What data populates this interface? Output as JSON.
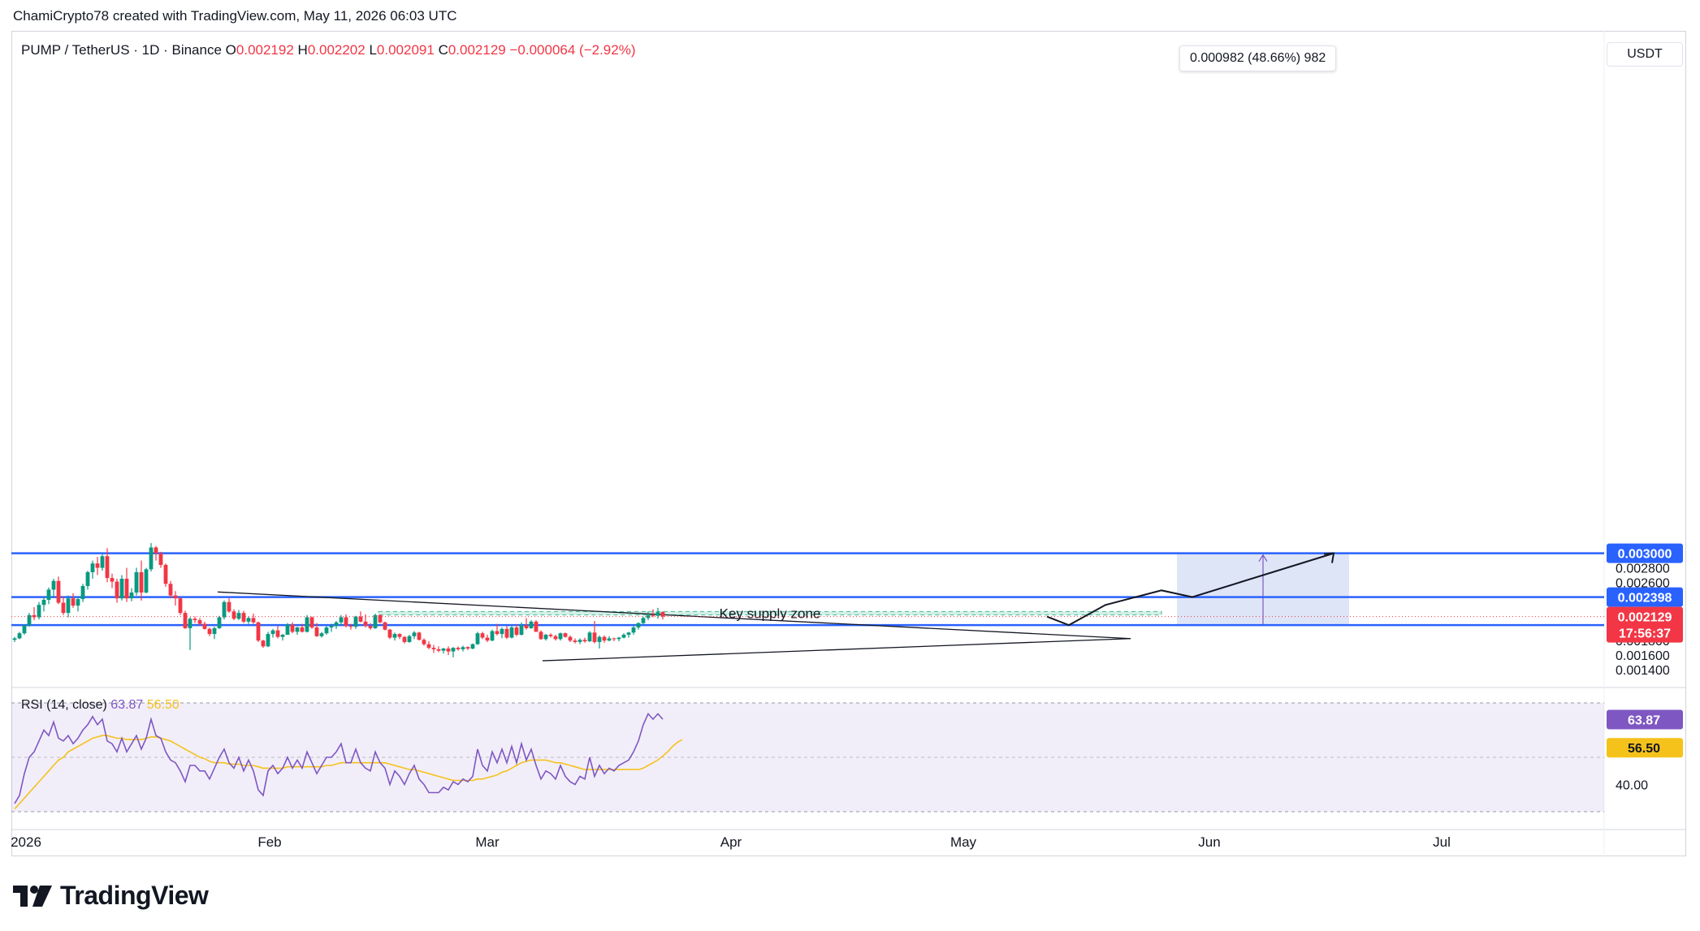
{
  "header": {
    "credit": "ChamiCrypto78 created with TradingView.com, May 11, 2026 06:03 UTC"
  },
  "symbol": {
    "pair": "PUMP / TetherUS · 1D · Binance",
    "open_label": "O",
    "open": "0.002192",
    "high_label": "H",
    "high": "0.002202",
    "low_label": "L",
    "low": "0.002091",
    "close_label": "C",
    "close": "0.002129",
    "change": "−0.000064 (−2.92%)"
  },
  "currency_button": "USDT",
  "measure_label": "0.000982 (48.66%) 982",
  "zone_label": "Key supply zone",
  "last_price": {
    "price": "0.002129",
    "countdown": "17:56:37"
  },
  "rsi": {
    "title": "RSI (14, close)",
    "value": "63.87",
    "ma": "56.50",
    "axis_label": "40.00"
  },
  "brand": {
    "name": "TradingView"
  },
  "colors": {
    "up": "#089981",
    "down": "#f23645",
    "level": "#2962ff",
    "rsi": "#7e57c2",
    "rsi_ma": "#f5c21b",
    "zone": "#d1f0e6",
    "target_box": "#dce4f7"
  },
  "chart_data": {
    "type": "candlestick",
    "x_axis": {
      "labels": [
        "2026",
        "Feb",
        "Mar",
        "Apr",
        "May",
        "Jun",
        "Jul"
      ]
    },
    "y_axis": {
      "labels": [
        "0.002800",
        "0.002600",
        "0.002200",
        "0.001800",
        "0.001600",
        "0.001400"
      ],
      "range": [
        0.00133,
        0.00314
      ]
    },
    "levels": [
      0.003,
      0.002398,
      0.002012
    ],
    "level_labels": [
      "0.003000",
      "0.002398",
      "0.002012"
    ],
    "supply_zone": [
      0.002152,
      0.0022
    ],
    "target_range": [
      0.002018,
      0.003
    ],
    "candles": [
      [
        0.00181,
        0.00185,
        0.00178,
        0.00183
      ],
      [
        0.00183,
        0.00192,
        0.00182,
        0.0019
      ],
      [
        0.0019,
        0.00202,
        0.00188,
        0.00201
      ],
      [
        0.00201,
        0.00218,
        0.00199,
        0.00215
      ],
      [
        0.00215,
        0.00226,
        0.00208,
        0.00212
      ],
      [
        0.00212,
        0.00233,
        0.00209,
        0.00229
      ],
      [
        0.00229,
        0.0024,
        0.0022,
        0.00236
      ],
      [
        0.00236,
        0.00253,
        0.0023,
        0.0025
      ],
      [
        0.0025,
        0.00265,
        0.0024,
        0.00262
      ],
      [
        0.00262,
        0.00268,
        0.0023,
        0.00232
      ],
      [
        0.00232,
        0.00241,
        0.00215,
        0.00218
      ],
      [
        0.00218,
        0.00242,
        0.00212,
        0.00238
      ],
      [
        0.00238,
        0.00245,
        0.00225,
        0.00228
      ],
      [
        0.00228,
        0.0024,
        0.0022,
        0.00237
      ],
      [
        0.00237,
        0.00258,
        0.00233,
        0.00255
      ],
      [
        0.00255,
        0.00276,
        0.0025,
        0.00274
      ],
      [
        0.00274,
        0.0029,
        0.00265,
        0.00286
      ],
      [
        0.00286,
        0.00295,
        0.0027,
        0.0028
      ],
      [
        0.0028,
        0.00299,
        0.00276,
        0.00296
      ],
      [
        0.00296,
        0.00307,
        0.0026,
        0.00266
      ],
      [
        0.00266,
        0.00272,
        0.00252,
        0.00261
      ],
      [
        0.00261,
        0.00265,
        0.00232,
        0.00238
      ],
      [
        0.00238,
        0.0027,
        0.00235,
        0.00265
      ],
      [
        0.00265,
        0.0028,
        0.00233,
        0.00238
      ],
      [
        0.00238,
        0.00252,
        0.00234,
        0.00246
      ],
      [
        0.00246,
        0.0028,
        0.00242,
        0.00274
      ],
      [
        0.00274,
        0.0029,
        0.00235,
        0.00246
      ],
      [
        0.00246,
        0.0028,
        0.00245,
        0.00278
      ],
      [
        0.00278,
        0.00314,
        0.00275,
        0.00308
      ],
      [
        0.00308,
        0.0031,
        0.0029,
        0.003
      ],
      [
        0.003,
        0.00302,
        0.0028,
        0.00284
      ],
      [
        0.00284,
        0.00286,
        0.00254,
        0.00258
      ],
      [
        0.00258,
        0.00262,
        0.00238,
        0.00242
      ],
      [
        0.00242,
        0.00248,
        0.00228,
        0.00238
      ],
      [
        0.00238,
        0.0024,
        0.00215,
        0.00218
      ],
      [
        0.00218,
        0.00221,
        0.00196,
        0.00197
      ],
      [
        0.00197,
        0.00212,
        0.00167,
        0.0021
      ],
      [
        0.0021,
        0.00213,
        0.00204,
        0.00208
      ],
      [
        0.00208,
        0.00211,
        0.002,
        0.00203
      ],
      [
        0.00203,
        0.00206,
        0.00195,
        0.00196
      ],
      [
        0.00196,
        0.00198,
        0.00186,
        0.00189
      ],
      [
        0.00189,
        0.00199,
        0.00182,
        0.00197
      ],
      [
        0.00197,
        0.00214,
        0.00196,
        0.00212
      ],
      [
        0.00212,
        0.00235,
        0.00209,
        0.00233
      ],
      [
        0.00233,
        0.00238,
        0.00218,
        0.0022
      ],
      [
        0.0022,
        0.00223,
        0.00208,
        0.0021
      ],
      [
        0.0021,
        0.00222,
        0.00208,
        0.00218
      ],
      [
        0.00218,
        0.00221,
        0.00204,
        0.00206
      ],
      [
        0.00206,
        0.00213,
        0.00203,
        0.00211
      ],
      [
        0.00211,
        0.00217,
        0.00203,
        0.00205
      ],
      [
        0.00205,
        0.00206,
        0.00178,
        0.0018
      ],
      [
        0.0018,
        0.00181,
        0.0017,
        0.00172
      ],
      [
        0.00172,
        0.00192,
        0.00171,
        0.00189
      ],
      [
        0.00189,
        0.00196,
        0.00184,
        0.00194
      ],
      [
        0.00194,
        0.002,
        0.00183,
        0.00185
      ],
      [
        0.00185,
        0.00189,
        0.0018,
        0.00188
      ],
      [
        0.00188,
        0.00204,
        0.00188,
        0.00202
      ],
      [
        0.00202,
        0.00205,
        0.0019,
        0.00192
      ],
      [
        0.00192,
        0.00199,
        0.00188,
        0.00198
      ],
      [
        0.00198,
        0.00203,
        0.00191,
        0.00192
      ],
      [
        0.00192,
        0.00215,
        0.00191,
        0.00212
      ],
      [
        0.00212,
        0.00213,
        0.00196,
        0.00198
      ],
      [
        0.00198,
        0.00204,
        0.00185,
        0.00186
      ],
      [
        0.00186,
        0.00192,
        0.00184,
        0.0019
      ],
      [
        0.0019,
        0.002,
        0.00188,
        0.00198
      ],
      [
        0.00198,
        0.00203,
        0.00192,
        0.002
      ],
      [
        0.002,
        0.00207,
        0.00196,
        0.00205
      ],
      [
        0.00205,
        0.00215,
        0.00201,
        0.00212
      ],
      [
        0.00212,
        0.00216,
        0.00198,
        0.002
      ],
      [
        0.002,
        0.00203,
        0.00195,
        0.00199
      ],
      [
        0.00199,
        0.00214,
        0.00196,
        0.00213
      ],
      [
        0.00213,
        0.0022,
        0.00205,
        0.00206
      ],
      [
        0.00206,
        0.00216,
        0.00198,
        0.002
      ],
      [
        0.002,
        0.00204,
        0.00195,
        0.00197
      ],
      [
        0.00197,
        0.00217,
        0.00196,
        0.00215
      ],
      [
        0.00215,
        0.00216,
        0.00204,
        0.00205
      ],
      [
        0.00205,
        0.00206,
        0.00194,
        0.00195
      ],
      [
        0.00195,
        0.00196,
        0.00182,
        0.00184
      ],
      [
        0.00184,
        0.00191,
        0.0018,
        0.00189
      ],
      [
        0.00189,
        0.0019,
        0.00182,
        0.00185
      ],
      [
        0.00185,
        0.00186,
        0.00176,
        0.00178
      ],
      [
        0.00178,
        0.00188,
        0.00177,
        0.00186
      ],
      [
        0.00186,
        0.00193,
        0.00182,
        0.00191
      ],
      [
        0.00191,
        0.00192,
        0.0018,
        0.00181
      ],
      [
        0.00181,
        0.00183,
        0.00173,
        0.00175
      ],
      [
        0.00175,
        0.00179,
        0.00168,
        0.0017
      ],
      [
        0.0017,
        0.00174,
        0.00163,
        0.00168
      ],
      [
        0.00168,
        0.00172,
        0.00164,
        0.00166
      ],
      [
        0.00166,
        0.0017,
        0.00162,
        0.00169
      ],
      [
        0.00169,
        0.00172,
        0.0016,
        0.00165
      ],
      [
        0.00165,
        0.00171,
        0.00157,
        0.0017
      ],
      [
        0.0017,
        0.00172,
        0.00166,
        0.00168
      ],
      [
        0.00168,
        0.00173,
        0.00165,
        0.00171
      ],
      [
        0.00171,
        0.00172,
        0.00167,
        0.00169
      ],
      [
        0.00169,
        0.00176,
        0.00168,
        0.00175
      ],
      [
        0.00175,
        0.00192,
        0.00174,
        0.0019
      ],
      [
        0.0019,
        0.00192,
        0.00182,
        0.00184
      ],
      [
        0.00184,
        0.00188,
        0.00178,
        0.0018
      ],
      [
        0.0018,
        0.00195,
        0.00179,
        0.00193
      ],
      [
        0.00193,
        0.00203,
        0.00187,
        0.00189
      ],
      [
        0.00189,
        0.00198,
        0.00183,
        0.00196
      ],
      [
        0.00196,
        0.002,
        0.00182,
        0.00184
      ],
      [
        0.00184,
        0.002,
        0.00183,
        0.00198
      ],
      [
        0.00198,
        0.00202,
        0.00186,
        0.00188
      ],
      [
        0.00188,
        0.00205,
        0.00187,
        0.00201
      ],
      [
        0.00201,
        0.00211,
        0.00195,
        0.00197
      ],
      [
        0.00197,
        0.00208,
        0.00196,
        0.00206
      ],
      [
        0.00206,
        0.00208,
        0.00192,
        0.00192
      ],
      [
        0.00192,
        0.00194,
        0.00181,
        0.00182
      ],
      [
        0.00182,
        0.00189,
        0.0018,
        0.00188
      ],
      [
        0.00188,
        0.0019,
        0.00184,
        0.00186
      ],
      [
        0.00186,
        0.00188,
        0.0018,
        0.00182
      ],
      [
        0.00182,
        0.00191,
        0.0018,
        0.0019
      ],
      [
        0.0019,
        0.00191,
        0.00184,
        0.00185
      ],
      [
        0.00185,
        0.00187,
        0.00178,
        0.0018
      ],
      [
        0.0018,
        0.00183,
        0.00176,
        0.00178
      ],
      [
        0.00178,
        0.00183,
        0.00175,
        0.00181
      ],
      [
        0.00181,
        0.00184,
        0.00177,
        0.00179
      ],
      [
        0.00179,
        0.00193,
        0.00178,
        0.00191
      ],
      [
        0.00191,
        0.00207,
        0.00176,
        0.00178
      ],
      [
        0.00178,
        0.00187,
        0.00169,
        0.00185
      ],
      [
        0.00185,
        0.00187,
        0.00177,
        0.0018
      ],
      [
        0.0018,
        0.00186,
        0.00179,
        0.00183
      ],
      [
        0.00183,
        0.00184,
        0.00179,
        0.00182
      ],
      [
        0.00182,
        0.00185,
        0.00179,
        0.00184
      ],
      [
        0.00184,
        0.0019,
        0.00183,
        0.00188
      ],
      [
        0.00188,
        0.00192,
        0.00184,
        0.00191
      ],
      [
        0.00191,
        0.002,
        0.00188,
        0.00198
      ],
      [
        0.00198,
        0.00205,
        0.00195,
        0.00204
      ],
      [
        0.00204,
        0.00213,
        0.00202,
        0.00211
      ],
      [
        0.00211,
        0.0022,
        0.00208,
        0.00215
      ],
      [
        0.00215,
        0.00223,
        0.00212,
        0.00214
      ],
      [
        0.00214,
        0.00225,
        0.0021,
        0.00219
      ],
      [
        0.002192,
        0.002202,
        0.002091,
        0.002129
      ]
    ],
    "projection_path": [
      0.002129,
      0.002012,
      0.00229,
      0.00249,
      0.002398,
      0.003
    ],
    "rsi_values": [
      33,
      36,
      44,
      50,
      52,
      56,
      60,
      58,
      63,
      57,
      56,
      58,
      55,
      57,
      60,
      62,
      65,
      62,
      64,
      56,
      55,
      52,
      57,
      52,
      55,
      58,
      53,
      57,
      64,
      58,
      57,
      52,
      49,
      48,
      45,
      41,
      47,
      47,
      45,
      45,
      42,
      46,
      50,
      53,
      48,
      46,
      50,
      45,
      49,
      45,
      38,
      36,
      45,
      47,
      44,
      46,
      50,
      46,
      49,
      46,
      52,
      48,
      44,
      47,
      50,
      50,
      52,
      55,
      48,
      48,
      53,
      48,
      46,
      45,
      52,
      48,
      46,
      40,
      45,
      43,
      40,
      44,
      47,
      42,
      40,
      37,
      37,
      37,
      39,
      38,
      41,
      40,
      42,
      41,
      43,
      53,
      47,
      45,
      52,
      48,
      53,
      48,
      54,
      48,
      55,
      49,
      53,
      47,
      42,
      45,
      44,
      42,
      47,
      43,
      41,
      40,
      43,
      42,
      50,
      43,
      47,
      44,
      46,
      45,
      47,
      48,
      49,
      52,
      56,
      62,
      66,
      64,
      66,
      64
    ],
    "rsi_ma_values": [
      31,
      33,
      35,
      37,
      39,
      41,
      43,
      45,
      47,
      49,
      50,
      52,
      53,
      54,
      55,
      56,
      57,
      57.5,
      58,
      58,
      57.5,
      57,
      57,
      56.5,
      56.5,
      56.5,
      56.5,
      57,
      57.5,
      57.5,
      57,
      56.5,
      56,
      55,
      54,
      53,
      52,
      51,
      50,
      49.5,
      48.5,
      48,
      48,
      48,
      47.5,
      47.5,
      47.5,
      47,
      47,
      47,
      46.5,
      46,
      46,
      46,
      46,
      46,
      46.5,
      46.5,
      46.5,
      46.5,
      46.5,
      46.5,
      46.5,
      46.5,
      47,
      47,
      47.5,
      48,
      48,
      48,
      48,
      48,
      48,
      48,
      48,
      48,
      48,
      47.5,
      47,
      46.5,
      46,
      45.5,
      45.5,
      45,
      44.5,
      44,
      43.5,
      43,
      42.5,
      42,
      41.5,
      41.5,
      41.5,
      41.5,
      41.5,
      42,
      42,
      42.5,
      43,
      43.5,
      44.5,
      45,
      46,
      47,
      48,
      48.5,
      49,
      49,
      49,
      49,
      48.5,
      48,
      48,
      47.5,
      47,
      46.5,
      46,
      45.5,
      45.5,
      45.5,
      45.5,
      45.5,
      45.5,
      45.5,
      45.5,
      45.5,
      45.5,
      45.5,
      45.5,
      46,
      47,
      48,
      49,
      50.5,
      52,
      54,
      55.5,
      56.5
    ]
  }
}
